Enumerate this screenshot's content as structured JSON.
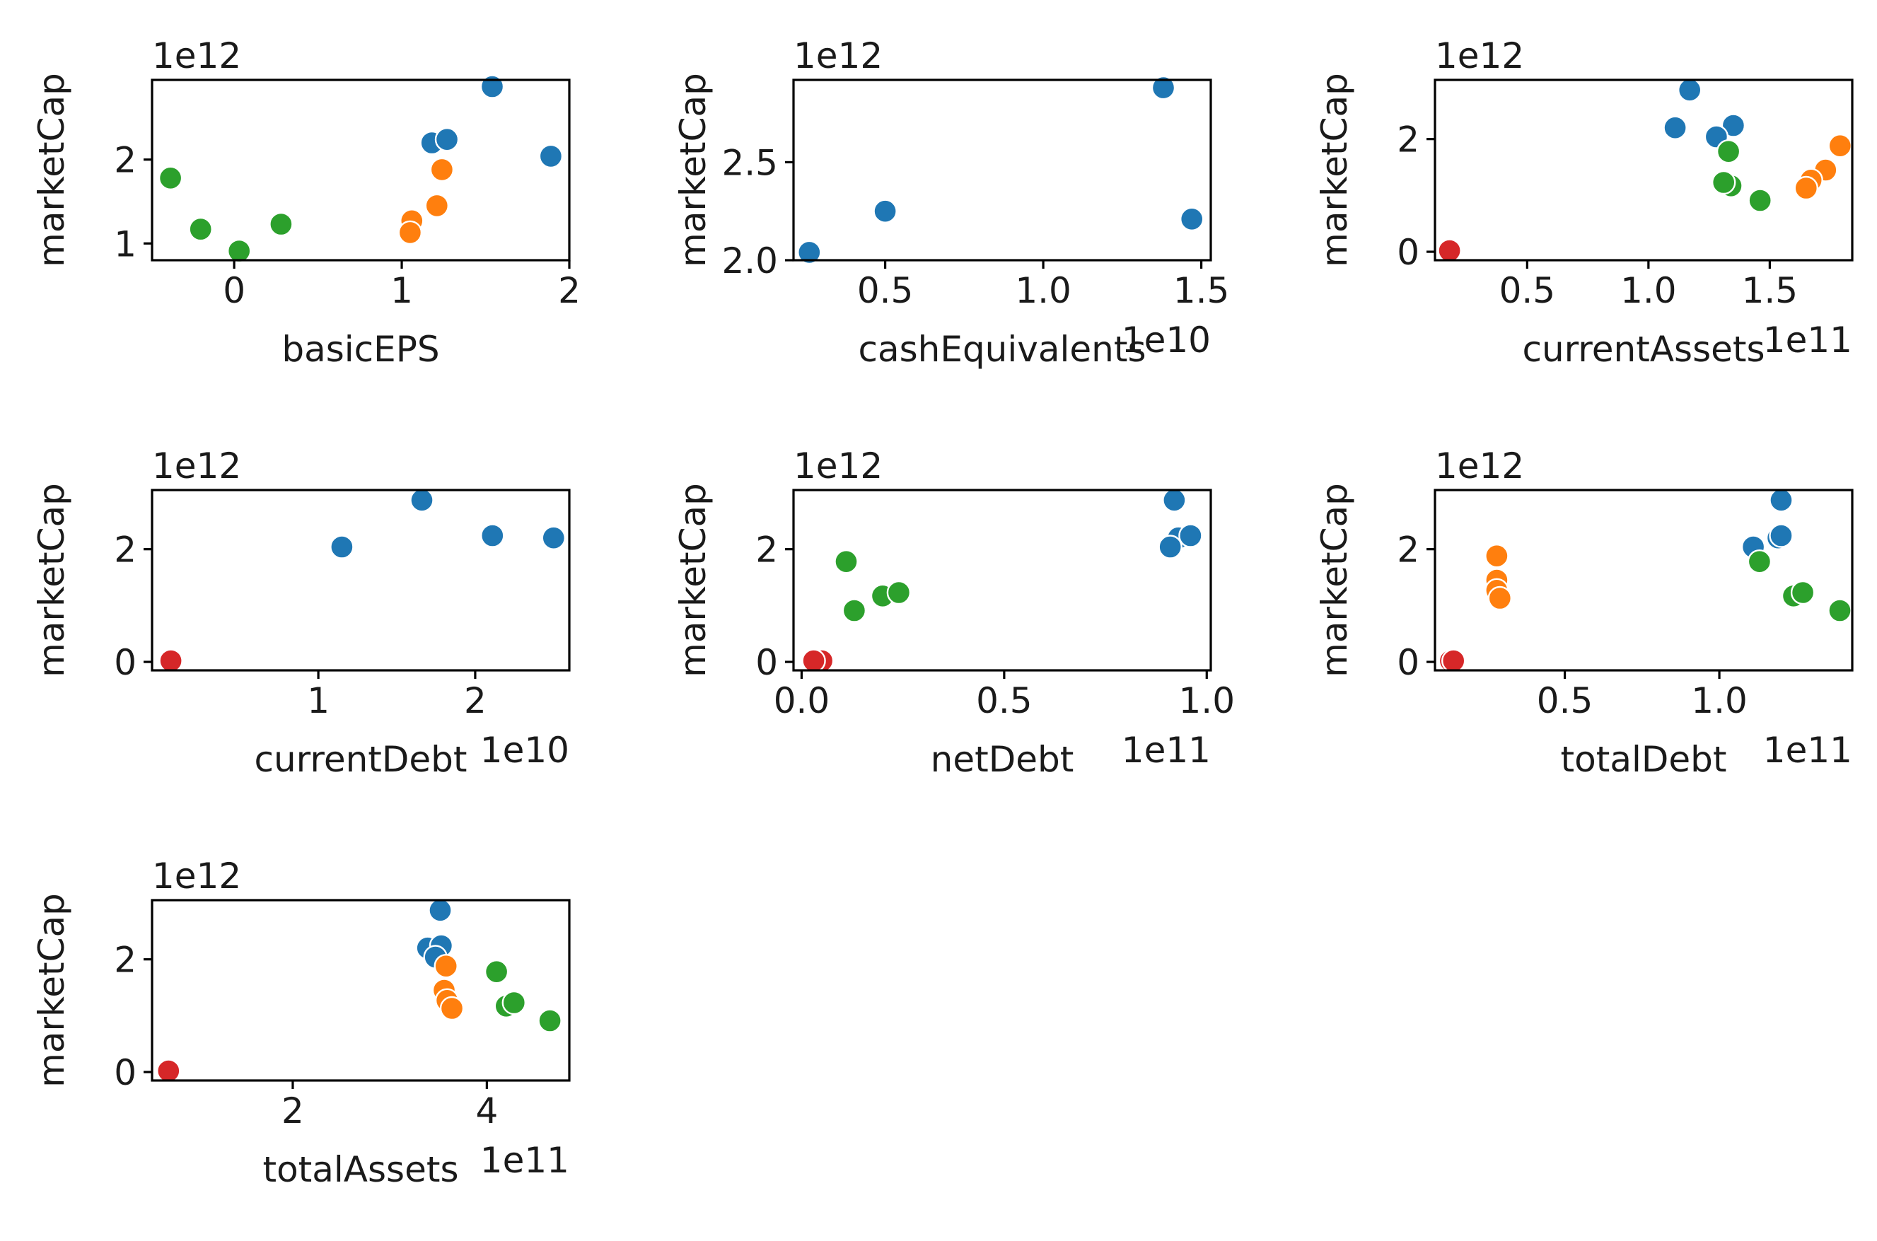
{
  "figure": {
    "ylabel": "marketCap",
    "palette": {
      "blue": "#1f77b4",
      "orange": "#ff7f0e",
      "green": "#2ca02c",
      "red": "#d62728"
    }
  },
  "chart_data": [
    {
      "type": "scatter",
      "xlabel": "basicEPS",
      "ylabel": "marketCap",
      "x_offset_label": "",
      "y_offset_label": "1e12",
      "xlim": [
        -0.49,
        2.0
      ],
      "ylim": [
        0.8,
        2.95
      ],
      "xticks": [
        0,
        1,
        2
      ],
      "xtick_labels": [
        "0",
        "1",
        "2"
      ],
      "yticks": [
        1,
        2
      ],
      "ytick_labels": [
        "1",
        "2"
      ],
      "points": [
        {
          "x": 1.54,
          "y": 2.87,
          "color": "blue"
        },
        {
          "x": 1.18,
          "y": 2.2,
          "color": "blue"
        },
        {
          "x": 1.27,
          "y": 2.24,
          "color": "blue"
        },
        {
          "x": 1.89,
          "y": 2.04,
          "color": "blue"
        },
        {
          "x": 1.24,
          "y": 1.88,
          "color": "orange"
        },
        {
          "x": 1.21,
          "y": 1.45,
          "color": "orange"
        },
        {
          "x": 1.06,
          "y": 1.27,
          "color": "orange"
        },
        {
          "x": 1.05,
          "y": 1.13,
          "color": "orange"
        },
        {
          "x": -0.38,
          "y": 1.78,
          "color": "green"
        },
        {
          "x": -0.2,
          "y": 1.17,
          "color": "green"
        },
        {
          "x": 0.28,
          "y": 1.23,
          "color": "green"
        },
        {
          "x": 0.03,
          "y": 0.91,
          "color": "green"
        }
      ]
    },
    {
      "type": "scatter",
      "xlabel": "cashEquivalents",
      "ylabel": "marketCap",
      "x_offset_label": "1e10",
      "y_offset_label": "1e12",
      "xlim": [
        0.21,
        1.53
      ],
      "ylim": [
        2.0,
        2.92
      ],
      "xticks": [
        0.5,
        1.0,
        1.5
      ],
      "xtick_labels": [
        "0.5",
        "1.0",
        "1.5"
      ],
      "yticks": [
        2.0,
        2.5
      ],
      "ytick_labels": [
        "2.0",
        "2.5"
      ],
      "points": [
        {
          "x": 1.38,
          "y": 2.88,
          "color": "blue"
        },
        {
          "x": 0.5,
          "y": 2.25,
          "color": "blue"
        },
        {
          "x": 1.47,
          "y": 2.21,
          "color": "blue"
        },
        {
          "x": 0.26,
          "y": 2.04,
          "color": "blue"
        }
      ]
    },
    {
      "type": "scatter",
      "xlabel": "currentAssets",
      "ylabel": "marketCap",
      "x_offset_label": "1e11",
      "y_offset_label": "1e12",
      "xlim": [
        0.12,
        1.84
      ],
      "ylim": [
        -0.15,
        3.05
      ],
      "xticks": [
        0.5,
        1.0,
        1.5
      ],
      "xtick_labels": [
        "0.5",
        "1.0",
        "1.5"
      ],
      "yticks": [
        0,
        2
      ],
      "ytick_labels": [
        "0",
        "2"
      ],
      "points": [
        {
          "x": 1.17,
          "y": 2.87,
          "color": "blue"
        },
        {
          "x": 1.11,
          "y": 2.2,
          "color": "blue"
        },
        {
          "x": 1.35,
          "y": 2.24,
          "color": "blue"
        },
        {
          "x": 1.28,
          "y": 2.04,
          "color": "blue"
        },
        {
          "x": 1.79,
          "y": 1.88,
          "color": "orange"
        },
        {
          "x": 1.73,
          "y": 1.45,
          "color": "orange"
        },
        {
          "x": 1.67,
          "y": 1.27,
          "color": "orange"
        },
        {
          "x": 1.65,
          "y": 1.13,
          "color": "orange"
        },
        {
          "x": 1.33,
          "y": 1.78,
          "color": "green"
        },
        {
          "x": 1.34,
          "y": 1.17,
          "color": "green"
        },
        {
          "x": 1.31,
          "y": 1.23,
          "color": "green"
        },
        {
          "x": 1.46,
          "y": 0.91,
          "color": "green"
        },
        {
          "x": 0.18,
          "y": 0.02,
          "color": "red"
        }
      ]
    },
    {
      "type": "scatter",
      "xlabel": "currentDebt",
      "ylabel": "marketCap",
      "x_offset_label": "1e10",
      "y_offset_label": "1e12",
      "xlim": [
        -0.06,
        2.6
      ],
      "ylim": [
        -0.15,
        3.05
      ],
      "xticks": [
        1,
        2
      ],
      "xtick_labels": [
        "1",
        "2"
      ],
      "yticks": [
        0,
        2
      ],
      "ytick_labels": [
        "0",
        "2"
      ],
      "points": [
        {
          "x": 1.66,
          "y": 2.87,
          "color": "blue"
        },
        {
          "x": 2.11,
          "y": 2.24,
          "color": "blue"
        },
        {
          "x": 2.5,
          "y": 2.2,
          "color": "blue"
        },
        {
          "x": 1.15,
          "y": 2.04,
          "color": "blue"
        },
        {
          "x": 0.06,
          "y": 0.02,
          "color": "red"
        }
      ]
    },
    {
      "type": "scatter",
      "xlabel": "netDebt",
      "ylabel": "marketCap",
      "x_offset_label": "1e11",
      "y_offset_label": "1e12",
      "xlim": [
        -0.02,
        1.01
      ],
      "ylim": [
        -0.15,
        3.05
      ],
      "xticks": [
        0.0,
        0.5,
        1.0
      ],
      "xtick_labels": [
        "0.0",
        "0.5",
        "1.0"
      ],
      "yticks": [
        0,
        2
      ],
      "ytick_labels": [
        "0",
        "2"
      ],
      "points": [
        {
          "x": 0.92,
          "y": 2.87,
          "color": "blue"
        },
        {
          "x": 0.93,
          "y": 2.2,
          "color": "blue"
        },
        {
          "x": 0.96,
          "y": 2.24,
          "color": "blue"
        },
        {
          "x": 0.91,
          "y": 2.04,
          "color": "blue"
        },
        {
          "x": 0.11,
          "y": 1.78,
          "color": "green"
        },
        {
          "x": 0.2,
          "y": 1.17,
          "color": "green"
        },
        {
          "x": 0.24,
          "y": 1.23,
          "color": "green"
        },
        {
          "x": 0.13,
          "y": 0.91,
          "color": "green"
        },
        {
          "x": 0.05,
          "y": 0.02,
          "color": "red"
        },
        {
          "x": 0.03,
          "y": 0.02,
          "color": "red"
        }
      ]
    },
    {
      "type": "scatter",
      "xlabel": "totalDebt",
      "ylabel": "marketCap",
      "x_offset_label": "1e11",
      "y_offset_label": "1e12",
      "xlim": [
        0.08,
        1.43
      ],
      "ylim": [
        -0.15,
        3.05
      ],
      "xticks": [
        0.5,
        1.0
      ],
      "xtick_labels": [
        "0.5",
        "1.0"
      ],
      "yticks": [
        0,
        2
      ],
      "ytick_labels": [
        "0",
        "2"
      ],
      "points": [
        {
          "x": 1.2,
          "y": 2.87,
          "color": "blue"
        },
        {
          "x": 1.19,
          "y": 2.2,
          "color": "blue"
        },
        {
          "x": 1.2,
          "y": 2.24,
          "color": "blue"
        },
        {
          "x": 1.11,
          "y": 2.04,
          "color": "blue"
        },
        {
          "x": 0.28,
          "y": 1.88,
          "color": "orange"
        },
        {
          "x": 0.28,
          "y": 1.45,
          "color": "orange"
        },
        {
          "x": 0.28,
          "y": 1.27,
          "color": "orange"
        },
        {
          "x": 0.29,
          "y": 1.13,
          "color": "orange"
        },
        {
          "x": 1.13,
          "y": 1.78,
          "color": "green"
        },
        {
          "x": 1.24,
          "y": 1.17,
          "color": "green"
        },
        {
          "x": 1.27,
          "y": 1.23,
          "color": "green"
        },
        {
          "x": 1.39,
          "y": 0.91,
          "color": "green"
        },
        {
          "x": 0.13,
          "y": 0.02,
          "color": "red"
        },
        {
          "x": 0.14,
          "y": 0.02,
          "color": "red"
        }
      ]
    },
    {
      "type": "scatter",
      "xlabel": "totalAssets",
      "ylabel": "marketCap",
      "x_offset_label": "1e11",
      "y_offset_label": "1e12",
      "xlim": [
        0.55,
        4.85
      ],
      "ylim": [
        -0.15,
        3.05
      ],
      "xticks": [
        2,
        4
      ],
      "xtick_labels": [
        "2",
        "4"
      ],
      "yticks": [
        0,
        2
      ],
      "ytick_labels": [
        "0",
        "2"
      ],
      "points": [
        {
          "x": 3.52,
          "y": 2.87,
          "color": "blue"
        },
        {
          "x": 3.39,
          "y": 2.2,
          "color": "blue"
        },
        {
          "x": 3.53,
          "y": 2.24,
          "color": "blue"
        },
        {
          "x": 3.47,
          "y": 2.04,
          "color": "blue"
        },
        {
          "x": 3.58,
          "y": 1.88,
          "color": "orange"
        },
        {
          "x": 3.56,
          "y": 1.45,
          "color": "orange"
        },
        {
          "x": 3.59,
          "y": 1.27,
          "color": "orange"
        },
        {
          "x": 3.64,
          "y": 1.13,
          "color": "orange"
        },
        {
          "x": 4.1,
          "y": 1.78,
          "color": "green"
        },
        {
          "x": 4.2,
          "y": 1.17,
          "color": "green"
        },
        {
          "x": 4.28,
          "y": 1.23,
          "color": "green"
        },
        {
          "x": 4.65,
          "y": 0.91,
          "color": "green"
        },
        {
          "x": 0.72,
          "y": 0.02,
          "color": "red"
        }
      ]
    }
  ]
}
